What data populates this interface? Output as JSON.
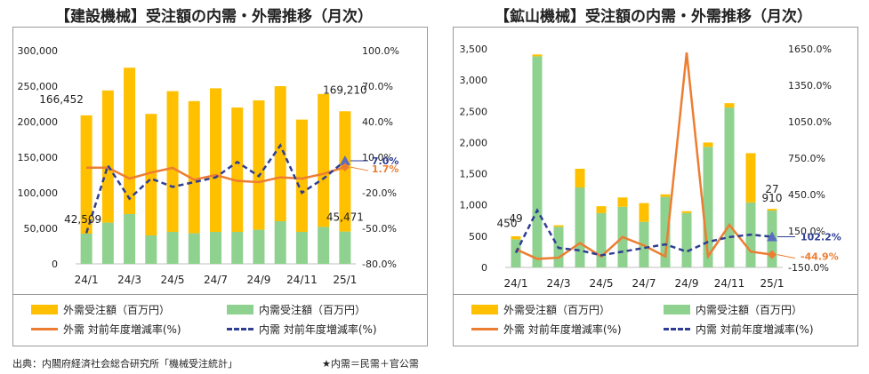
{
  "page": {
    "source_note": "出典：内閣府経済社会総合研究所「機械受注統計」",
    "domestic_note": "★内需＝民需＋官公需"
  },
  "colors": {
    "foreign_bar": "#FFC000",
    "domestic_bar": "#8FD18F",
    "foreign_line": "#ED7D31",
    "domestic_line": "#2F3E93"
  },
  "chart_data": [
    {
      "type": "bar",
      "stacked": true,
      "title": "【建設機械】受注額の内需・外需推移（月次）",
      "categories": [
        "24/1",
        "24/2",
        "24/3",
        "24/4",
        "24/5",
        "24/6",
        "24/7",
        "24/8",
        "24/9",
        "24/10",
        "24/11",
        "24/12",
        "25/1"
      ],
      "x_tick_labels": [
        "24/1",
        "24/3",
        "24/5",
        "24/7",
        "24/9",
        "24/11",
        "25/1"
      ],
      "x_tick_index": [
        0,
        2,
        4,
        6,
        8,
        10,
        12
      ],
      "series": [
        {
          "name": "内需受注額（百万円）",
          "axis": "left",
          "kind": "bar",
          "values": [
            42509,
            58000,
            70000,
            40000,
            45000,
            43000,
            45000,
            45000,
            48000,
            60000,
            45000,
            52000,
            45471
          ]
        },
        {
          "name": "外需受注額（百万円）",
          "axis": "left",
          "kind": "bar",
          "values": [
            166452,
            186000,
            206000,
            171000,
            198000,
            186000,
            202000,
            175000,
            182000,
            190000,
            158000,
            187000,
            169210
          ]
        },
        {
          "name": "外需 対前年度増減率(%)",
          "axis": "right",
          "kind": "line",
          "values": [
            1.2,
            1.2,
            -8.0,
            -3.0,
            1.0,
            -9.0,
            -5.0,
            -10.0,
            -11.0,
            -7.0,
            -8.0,
            -4.0,
            1.7
          ]
        },
        {
          "name": "内需 対前年度増減率(%)",
          "axis": "right",
          "kind": "line",
          "values": [
            -54.0,
            3.0,
            -25.0,
            -8.0,
            -15.0,
            -11.0,
            -7.0,
            6.0,
            -6.0,
            20.0,
            -20.0,
            -8.0,
            7.0
          ]
        }
      ],
      "y_left": {
        "min": 0,
        "max": 300000,
        "step": 50000,
        "ticks": [
          "0",
          "50,000",
          "100,000",
          "150,000",
          "200,000",
          "250,000",
          "300,000"
        ]
      },
      "y_right": {
        "min": -80,
        "max": 100,
        "step": 30,
        "ticks": [
          "-80.0%",
          "-50.0%",
          "-20.0%",
          "10.0%",
          "40.0%",
          "70.0%",
          "100.0%"
        ]
      },
      "annotations": [
        "166,452",
        "42,509",
        "169,210",
        "45,471",
        "7.0%",
        "1.7%"
      ],
      "legend": {
        "foreign_bar": "外需受注額（百万円）",
        "domestic_bar": "内需受注額（百万円）",
        "foreign_line": "外需 対前年度増減率(%)",
        "domestic_line": "内需 対前年度増減率(%)"
      },
      "legend_position": "bottom"
    },
    {
      "type": "bar",
      "stacked": true,
      "title": "【鉱山機械】受注額の内需・外需推移（月次）",
      "categories": [
        "24/1",
        "24/2",
        "24/3",
        "24/4",
        "24/5",
        "24/6",
        "24/7",
        "24/8",
        "24/9",
        "24/10",
        "24/11",
        "24/12",
        "25/1"
      ],
      "x_tick_labels": [
        "24/1",
        "24/3",
        "24/5",
        "24/7",
        "24/9",
        "24/11",
        "25/1"
      ],
      "x_tick_index": [
        0,
        2,
        4,
        6,
        8,
        10,
        12
      ],
      "series": [
        {
          "name": "内需受注額（百万円）",
          "axis": "left",
          "kind": "bar",
          "values": [
            450,
            3380,
            650,
            1280,
            870,
            970,
            730,
            1130,
            870,
            1930,
            2560,
            1040,
            910
          ]
        },
        {
          "name": "外需受注額（百万円）",
          "axis": "left",
          "kind": "bar",
          "values": [
            49,
            30,
            25,
            300,
            110,
            150,
            300,
            40,
            30,
            70,
            70,
            790,
            27
          ]
        },
        {
          "name": "外需 対前年度増減率(%)",
          "axis": "right",
          "kind": "line",
          "values": [
            0,
            -80,
            -70,
            50,
            -60,
            100,
            30,
            -60,
            1620,
            -60,
            200,
            -20,
            -44.9
          ]
        },
        {
          "name": "内需 対前年度増減率(%)",
          "axis": "right",
          "kind": "line",
          "values": [
            -30,
            320,
            10,
            -10,
            -50,
            -20,
            10,
            40,
            -20,
            60,
            100,
            120,
            102.2
          ]
        }
      ],
      "y_left": {
        "min": 0,
        "max": 3500,
        "step": 500,
        "ticks": [
          "0",
          "500",
          "1,000",
          "1,500",
          "2,000",
          "2,500",
          "3,000",
          "3,500"
        ]
      },
      "y_right": {
        "min": -150,
        "max": 1650,
        "step": 300,
        "ticks": [
          "-150.0%",
          "150.0%",
          "450.0%",
          "750.0%",
          "1050.0%",
          "1350.0%",
          "1650.0%"
        ]
      },
      "annotations": [
        "49",
        "450",
        "27",
        "910",
        "102.2%",
        "-44.9%"
      ],
      "legend": {
        "foreign_bar": "外需受注額（百万円）",
        "domestic_bar": "内需受注額（百万円）",
        "foreign_line": "外需 対前年度増減率(%)",
        "domestic_line": "内需 対前年度増減率(%)"
      },
      "legend_position": "bottom"
    }
  ]
}
